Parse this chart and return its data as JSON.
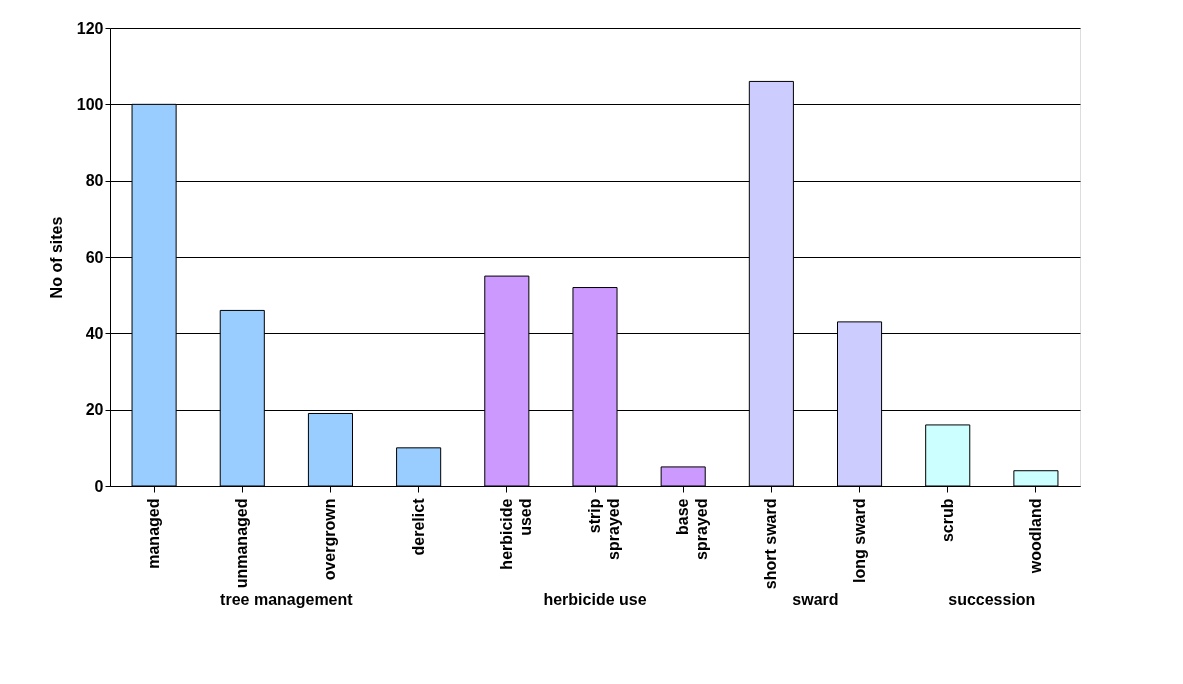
{
  "chart_data": {
    "type": "bar",
    "ylabel": "No of sites",
    "categories": [
      "managed",
      "unmanaged",
      "overgrown",
      "derelict",
      "herbicide\nused",
      "strip\nsprayed",
      "base\nsprayed",
      "short sward",
      "long sward",
      "scrub",
      "woodland"
    ],
    "values": [
      100,
      46,
      19,
      10,
      55,
      52,
      5,
      106,
      43,
      16,
      4
    ],
    "colors": [
      "#99ccff",
      "#99ccff",
      "#99ccff",
      "#99ccff",
      "#cc99ff",
      "#cc99ff",
      "#cc99ff",
      "#ccccff",
      "#ccccff",
      "#ccffff",
      "#ccffff"
    ],
    "annotations": [
      "tree management",
      "herbicide use",
      "sward",
      "succession"
    ],
    "ylim": [
      0,
      120
    ],
    "yticks": [
      0,
      20,
      40,
      60,
      80,
      100,
      120
    ],
    "grid": "y"
  }
}
